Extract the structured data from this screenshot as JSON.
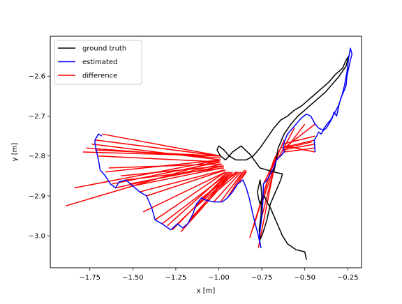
{
  "chart_data": {
    "type": "line",
    "xlabel": "x [m]",
    "ylabel": "y [m]",
    "xlim": [
      -1.98,
      -0.17
    ],
    "ylim": [
      -3.08,
      -2.5
    ],
    "xticks": [
      -1.75,
      -1.5,
      -1.25,
      -1.0,
      -0.75,
      -0.5,
      -0.25
    ],
    "xtick_labels": [
      "−1.75",
      "−1.50",
      "−1.25",
      "−1.00",
      "−0.75",
      "−0.50",
      "−0.25"
    ],
    "yticks": [
      -3.0,
      -2.9,
      -2.8,
      -2.7,
      -2.6
    ],
    "ytick_labels": [
      "−3.0",
      "−2.9",
      "−2.8",
      "−2.7",
      "−2.6"
    ],
    "grid": false,
    "legend_position": "upper left",
    "series": [
      {
        "name": "ground truth",
        "color": "#000000",
        "points": [
          [
            -0.49,
            -3.06
          ],
          [
            -0.5,
            -3.04
          ],
          [
            -0.55,
            -3.035
          ],
          [
            -0.6,
            -3.02
          ],
          [
            -0.63,
            -3.0
          ],
          [
            -0.66,
            -2.97
          ],
          [
            -0.7,
            -2.93
          ],
          [
            -0.72,
            -2.915
          ],
          [
            -0.735,
            -2.9
          ],
          [
            -0.745,
            -2.905
          ],
          [
            -0.76,
            -2.92
          ],
          [
            -0.77,
            -2.905
          ],
          [
            -0.775,
            -2.89
          ],
          [
            -0.765,
            -2.87
          ],
          [
            -0.76,
            -2.86
          ],
          [
            -0.755,
            -2.875
          ],
          [
            -0.75,
            -2.9
          ],
          [
            -0.755,
            -2.95
          ],
          [
            -0.765,
            -2.985
          ],
          [
            -0.76,
            -3.01
          ],
          [
            -0.745,
            -2.995
          ],
          [
            -0.72,
            -2.96
          ],
          [
            -0.7,
            -2.92
          ],
          [
            -0.68,
            -2.9
          ],
          [
            -0.66,
            -2.88
          ],
          [
            -0.64,
            -2.86
          ],
          [
            -0.63,
            -2.845
          ],
          [
            -0.68,
            -2.84
          ],
          [
            -0.72,
            -2.835
          ],
          [
            -0.76,
            -2.83
          ],
          [
            -0.82,
            -2.795
          ],
          [
            -0.87,
            -2.775
          ],
          [
            -0.92,
            -2.79
          ],
          [
            -0.96,
            -2.81
          ],
          [
            -0.99,
            -2.8
          ],
          [
            -1.01,
            -2.785
          ],
          [
            -1.0,
            -2.775
          ],
          [
            -0.97,
            -2.785
          ],
          [
            -0.94,
            -2.8
          ],
          [
            -0.9,
            -2.81
          ],
          [
            -0.84,
            -2.81
          ],
          [
            -0.8,
            -2.8
          ],
          [
            -0.76,
            -2.78
          ],
          [
            -0.72,
            -2.755
          ],
          [
            -0.68,
            -2.73
          ],
          [
            -0.64,
            -2.71
          ],
          [
            -0.6,
            -2.7
          ],
          [
            -0.56,
            -2.685
          ],
          [
            -0.52,
            -2.675
          ],
          [
            -0.48,
            -2.66
          ],
          [
            -0.44,
            -2.645
          ],
          [
            -0.4,
            -2.63
          ],
          [
            -0.36,
            -2.615
          ],
          [
            -0.32,
            -2.595
          ],
          [
            -0.28,
            -2.58
          ],
          [
            -0.26,
            -2.56
          ],
          [
            -0.245,
            -2.55
          ],
          [
            -0.26,
            -2.575
          ],
          [
            -0.3,
            -2.6
          ],
          [
            -0.34,
            -2.62
          ],
          [
            -0.38,
            -2.64
          ],
          [
            -0.42,
            -2.655
          ],
          [
            -0.46,
            -2.67
          ],
          [
            -0.5,
            -2.685
          ],
          [
            -0.54,
            -2.7
          ],
          [
            -0.58,
            -2.72
          ],
          [
            -0.62,
            -2.745
          ],
          [
            -0.655,
            -2.78
          ],
          [
            -0.67,
            -2.82
          ],
          [
            -0.68,
            -2.84
          ]
        ]
      },
      {
        "name": "estimated",
        "color": "#0000ff",
        "points": [
          [
            -0.44,
            -2.79
          ],
          [
            -0.445,
            -2.76
          ],
          [
            -0.43,
            -2.75
          ],
          [
            -0.42,
            -2.74
          ],
          [
            -0.405,
            -2.745
          ],
          [
            -0.39,
            -2.735
          ],
          [
            -0.375,
            -2.73
          ],
          [
            -0.36,
            -2.72
          ],
          [
            -0.34,
            -2.705
          ],
          [
            -0.33,
            -2.69
          ],
          [
            -0.315,
            -2.7
          ],
          [
            -0.3,
            -2.67
          ],
          [
            -0.29,
            -2.655
          ],
          [
            -0.275,
            -2.64
          ],
          [
            -0.26,
            -2.625
          ],
          [
            -0.255,
            -2.6
          ],
          [
            -0.245,
            -2.58
          ],
          [
            -0.235,
            -2.56
          ],
          [
            -0.225,
            -2.545
          ],
          [
            -0.235,
            -2.53
          ],
          [
            -0.245,
            -2.555
          ],
          [
            -0.255,
            -2.59
          ],
          [
            -0.27,
            -2.625
          ],
          [
            -0.285,
            -2.65
          ],
          [
            -0.305,
            -2.675
          ],
          [
            -0.33,
            -2.695
          ],
          [
            -0.35,
            -2.71
          ],
          [
            -0.37,
            -2.72
          ],
          [
            -0.395,
            -2.735
          ],
          [
            -0.42,
            -2.73
          ],
          [
            -0.44,
            -2.72
          ],
          [
            -0.465,
            -2.7
          ],
          [
            -0.49,
            -2.695
          ],
          [
            -0.52,
            -2.705
          ],
          [
            -0.55,
            -2.72
          ],
          [
            -0.58,
            -2.735
          ],
          [
            -0.6,
            -2.745
          ],
          [
            -0.615,
            -2.76
          ],
          [
            -0.625,
            -2.775
          ],
          [
            -0.62,
            -2.79
          ],
          [
            -0.64,
            -2.8
          ],
          [
            -0.665,
            -2.81
          ],
          [
            -0.68,
            -2.83
          ],
          [
            -0.7,
            -2.845
          ],
          [
            -0.72,
            -2.86
          ],
          [
            -0.74,
            -2.87
          ],
          [
            -0.745,
            -2.93
          ],
          [
            -0.755,
            -2.97
          ],
          [
            -0.765,
            -3.005
          ],
          [
            -0.755,
            -3.03
          ],
          [
            -0.77,
            -3.0
          ],
          [
            -0.8,
            -2.95
          ],
          [
            -0.82,
            -2.91
          ],
          [
            -0.84,
            -2.88
          ],
          [
            -0.86,
            -2.86
          ],
          [
            -0.89,
            -2.87
          ],
          [
            -0.92,
            -2.89
          ],
          [
            -0.95,
            -2.905
          ],
          [
            -0.98,
            -2.915
          ],
          [
            -1.03,
            -2.915
          ],
          [
            -1.08,
            -2.91
          ],
          [
            -1.1,
            -2.905
          ],
          [
            -1.13,
            -2.92
          ],
          [
            -1.15,
            -2.945
          ],
          [
            -1.18,
            -2.97
          ],
          [
            -1.21,
            -2.98
          ],
          [
            -1.24,
            -2.97
          ],
          [
            -1.28,
            -2.985
          ],
          [
            -1.33,
            -2.97
          ],
          [
            -1.37,
            -2.96
          ],
          [
            -1.39,
            -2.93
          ],
          [
            -1.42,
            -2.9
          ],
          [
            -1.46,
            -2.89
          ],
          [
            -1.5,
            -2.875
          ],
          [
            -1.54,
            -2.86
          ],
          [
            -1.58,
            -2.865
          ],
          [
            -1.6,
            -2.88
          ],
          [
            -1.63,
            -2.87
          ],
          [
            -1.66,
            -2.85
          ],
          [
            -1.69,
            -2.835
          ],
          [
            -1.7,
            -2.81
          ],
          [
            -1.71,
            -2.79
          ],
          [
            -1.72,
            -2.77
          ],
          [
            -1.72,
            -2.76
          ],
          [
            -1.7,
            -2.745
          ],
          [
            -1.68,
            -2.75
          ]
        ]
      },
      {
        "name": "difference",
        "color": "#ff0000",
        "segments": [
          [
            [
              -1.89,
              -2.925
            ],
            [
              -0.99,
              -2.81
            ]
          ],
          [
            [
              -1.84,
              -2.88
            ],
            [
              -0.99,
              -2.81
            ]
          ],
          [
            [
              -1.79,
              -2.79
            ],
            [
              -0.99,
              -2.8
            ]
          ],
          [
            [
              -1.77,
              -2.78
            ],
            [
              -0.99,
              -2.805
            ]
          ],
          [
            [
              -1.74,
              -2.77
            ],
            [
              -0.99,
              -2.81
            ]
          ],
          [
            [
              -1.72,
              -2.76
            ],
            [
              -0.99,
              -2.8
            ]
          ],
          [
            [
              -1.72,
              -2.785
            ],
            [
              -0.99,
              -2.8
            ]
          ],
          [
            [
              -1.7,
              -2.8
            ],
            [
              -0.99,
              -2.815
            ]
          ],
          [
            [
              -1.68,
              -2.745
            ],
            [
              -0.99,
              -2.8
            ]
          ],
          [
            [
              -1.66,
              -2.84
            ],
            [
              -0.99,
              -2.81
            ]
          ],
          [
            [
              -1.64,
              -2.83
            ],
            [
              -0.99,
              -2.82
            ]
          ],
          [
            [
              -1.62,
              -2.87
            ],
            [
              -0.99,
              -2.815
            ]
          ],
          [
            [
              -1.6,
              -2.88
            ],
            [
              -0.98,
              -2.82
            ]
          ],
          [
            [
              -1.57,
              -2.85
            ],
            [
              -0.98,
              -2.825
            ]
          ],
          [
            [
              -1.54,
              -2.86
            ],
            [
              -0.97,
              -2.83
            ]
          ],
          [
            [
              -1.52,
              -2.87
            ],
            [
              -0.97,
              -2.825
            ]
          ],
          [
            [
              -1.5,
              -2.875
            ],
            [
              -0.98,
              -2.83
            ]
          ],
          [
            [
              -1.46,
              -2.89
            ],
            [
              -0.97,
              -2.835
            ]
          ],
          [
            [
              -1.44,
              -2.94
            ],
            [
              -0.96,
              -2.84
            ]
          ],
          [
            [
              -1.42,
              -2.9
            ],
            [
              -0.96,
              -2.835
            ]
          ],
          [
            [
              -1.37,
              -2.96
            ],
            [
              -0.96,
              -2.84
            ]
          ],
          [
            [
              -1.33,
              -2.97
            ],
            [
              -0.95,
              -2.845
            ]
          ],
          [
            [
              -1.3,
              -2.975
            ],
            [
              -0.95,
              -2.84
            ]
          ],
          [
            [
              -1.27,
              -2.985
            ],
            [
              -0.94,
              -2.84
            ]
          ],
          [
            [
              -1.24,
              -2.97
            ],
            [
              -0.94,
              -2.845
            ]
          ],
          [
            [
              -1.22,
              -2.99
            ],
            [
              -0.93,
              -2.84
            ]
          ],
          [
            [
              -1.2,
              -2.98
            ],
            [
              -0.92,
              -2.845
            ]
          ],
          [
            [
              -1.17,
              -2.96
            ],
            [
              -0.92,
              -2.84
            ]
          ],
          [
            [
              -1.14,
              -2.93
            ],
            [
              -0.9,
              -2.84
            ]
          ],
          [
            [
              -1.1,
              -2.905
            ],
            [
              -0.89,
              -2.84
            ]
          ],
          [
            [
              -1.07,
              -2.91
            ],
            [
              -0.88,
              -2.84
            ]
          ],
          [
            [
              -1.03,
              -2.915
            ],
            [
              -0.87,
              -2.84
            ]
          ],
          [
            [
              -0.99,
              -2.915
            ],
            [
              -0.86,
              -2.84
            ]
          ],
          [
            [
              -0.95,
              -2.905
            ],
            [
              -0.85,
              -2.835
            ]
          ],
          [
            [
              -0.92,
              -2.89
            ],
            [
              -0.84,
              -2.835
            ]
          ],
          [
            [
              -0.89,
              -2.87
            ],
            [
              -0.84,
              -2.84
            ]
          ],
          [
            [
              -0.82,
              -3.005
            ],
            [
              -0.68,
              -2.81
            ]
          ],
          [
            [
              -0.8,
              -2.98
            ],
            [
              -0.67,
              -2.8
            ]
          ],
          [
            [
              -0.77,
              -3.03
            ],
            [
              -0.66,
              -2.79
            ]
          ],
          [
            [
              -0.76,
              -2.97
            ],
            [
              -0.66,
              -2.8
            ]
          ],
          [
            [
              -0.75,
              -2.92
            ],
            [
              -0.65,
              -2.79
            ]
          ],
          [
            [
              -0.74,
              -2.87
            ],
            [
              -0.64,
              -2.78
            ]
          ],
          [
            [
              -0.7,
              -2.84
            ],
            [
              -0.62,
              -2.76
            ]
          ],
          [
            [
              -0.66,
              -2.81
            ],
            [
              -0.56,
              -2.73
            ]
          ],
          [
            [
              -0.64,
              -2.8
            ],
            [
              -0.5,
              -2.72
            ]
          ],
          [
            [
              -0.62,
              -2.78
            ],
            [
              -0.44,
              -2.72
            ]
          ],
          [
            [
              -0.63,
              -2.77
            ],
            [
              -0.44,
              -2.75
            ]
          ],
          [
            [
              -0.64,
              -2.78
            ],
            [
              -0.44,
              -2.76
            ]
          ],
          [
            [
              -0.63,
              -2.785
            ],
            [
              -0.44,
              -2.77
            ]
          ],
          [
            [
              -0.62,
              -2.79
            ],
            [
              -0.44,
              -2.78
            ]
          ],
          [
            [
              -0.62,
              -2.775
            ],
            [
              -0.44,
              -2.79
            ]
          ],
          [
            [
              -0.61,
              -2.78
            ],
            [
              -0.46,
              -2.765
            ]
          ]
        ]
      }
    ]
  }
}
